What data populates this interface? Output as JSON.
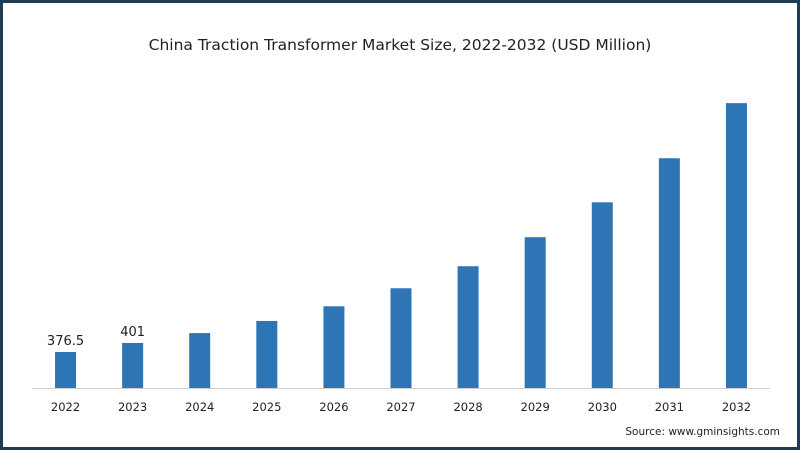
{
  "chart_data": {
    "type": "bar",
    "title": "China Traction Transformer Market Size, 2022-2032 (USD Million)",
    "categories": [
      "2022",
      "2023",
      "2024",
      "2025",
      "2026",
      "2027",
      "2028",
      "2029",
      "2030",
      "2031",
      "2032"
    ],
    "values": [
      376.5,
      401,
      428,
      461,
      501,
      550,
      610,
      689,
      784,
      904,
      1054
    ],
    "data_labels": [
      "376.5",
      "401",
      null,
      null,
      null,
      null,
      null,
      null,
      null,
      null,
      null
    ],
    "xlabel": "",
    "ylabel": "",
    "ylim": [
      278,
      1100
    ],
    "grid": false,
    "legend": "none",
    "bar_color": "#2e75b6",
    "source": "Source: www.gminsights.com"
  }
}
